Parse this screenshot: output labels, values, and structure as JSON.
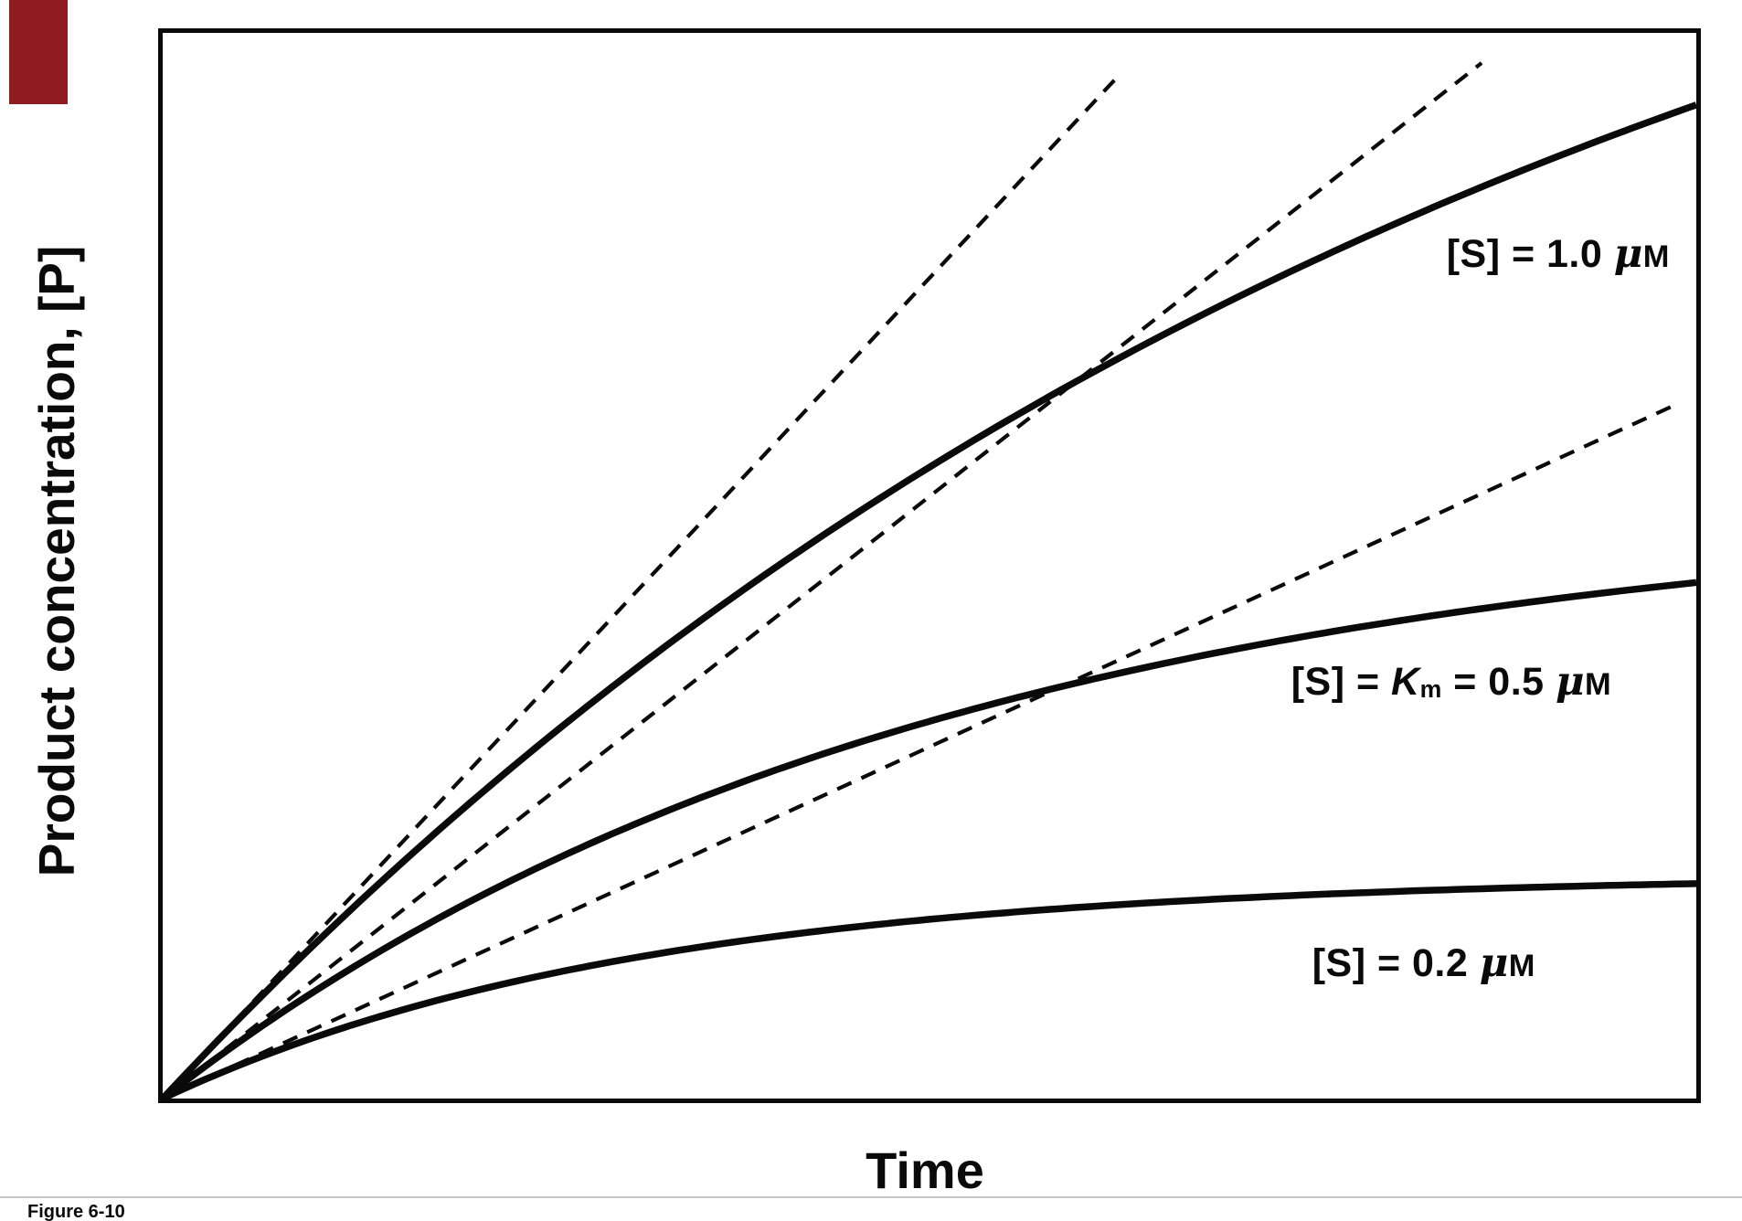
{
  "figure": {
    "caption": "Figure 6-10"
  },
  "axes": {
    "y_label": "Product concentration, [P]",
    "x_label": "Time"
  },
  "colors": {
    "curve": "#0a0a0a",
    "frame": "#0a0a0a",
    "background": "#ffffff",
    "corner_tab": "#8e1c21",
    "divider": "#c6c6c6"
  },
  "chart_data": {
    "type": "line",
    "title": "",
    "xlabel": "Time",
    "ylabel": "Product concentration, [P]",
    "x_range": [
      0,
      1
    ],
    "y_range": [
      0,
      1
    ],
    "grid": false,
    "axes_style": "closed rectangular frame, no ticks, no numeric labels",
    "note": "Enzyme-kinetics progress curves: product concentration [P] versus time at three substrate concentrations. Dashed straight lines are the initial-velocity tangents at t = 0; curves flatten as substrate is depleted.",
    "series": [
      {
        "label": "[S] = 1.0 μM",
        "style": "solid",
        "model": "P = Pmax·(1 − e^(−t/τ))",
        "p_max": 1.39,
        "tau": 0.9,
        "initial_slope": 1.54,
        "end_value": 0.93
      },
      {
        "label": "[S] = Km = 0.5 μM",
        "style": "solid",
        "model": "P = Pmax·(1 − e^(−t/τ))",
        "p_max": 0.56,
        "tau": 0.5,
        "initial_slope": 1.13,
        "end_value": 0.49
      },
      {
        "label": "[S] = 0.2 μM",
        "style": "solid",
        "model": "P = Pmax·(1 − e^(−t/τ))",
        "p_max": 0.21,
        "tau": 0.31,
        "initial_slope": 0.66,
        "end_value": 0.2
      }
    ],
    "tangents": [
      {
        "for": "[S] = 1.0 μM",
        "slope": 1.54,
        "x_end": 0.625,
        "style": "dashed"
      },
      {
        "for": "[S] = Km = 0.5 μM",
        "slope": 1.13,
        "x_end": 0.86,
        "style": "dashed"
      },
      {
        "for": "[S] = 0.2 μM",
        "slope": 0.66,
        "x_end": 0.985,
        "style": "dashed"
      }
    ],
    "legend": "none (curves labeled inline)"
  },
  "curve_labels": [
    {
      "pre": "[S] = 1.0 ",
      "mu": "μ",
      "unit": "M"
    },
    {
      "pre": "[S] = ",
      "var": "K",
      "sub": "m",
      "mid": " = 0.5 ",
      "mu": "μ",
      "unit": "M"
    },
    {
      "pre": "[S] = 0.2 ",
      "mu": "μ",
      "unit": "M"
    }
  ]
}
